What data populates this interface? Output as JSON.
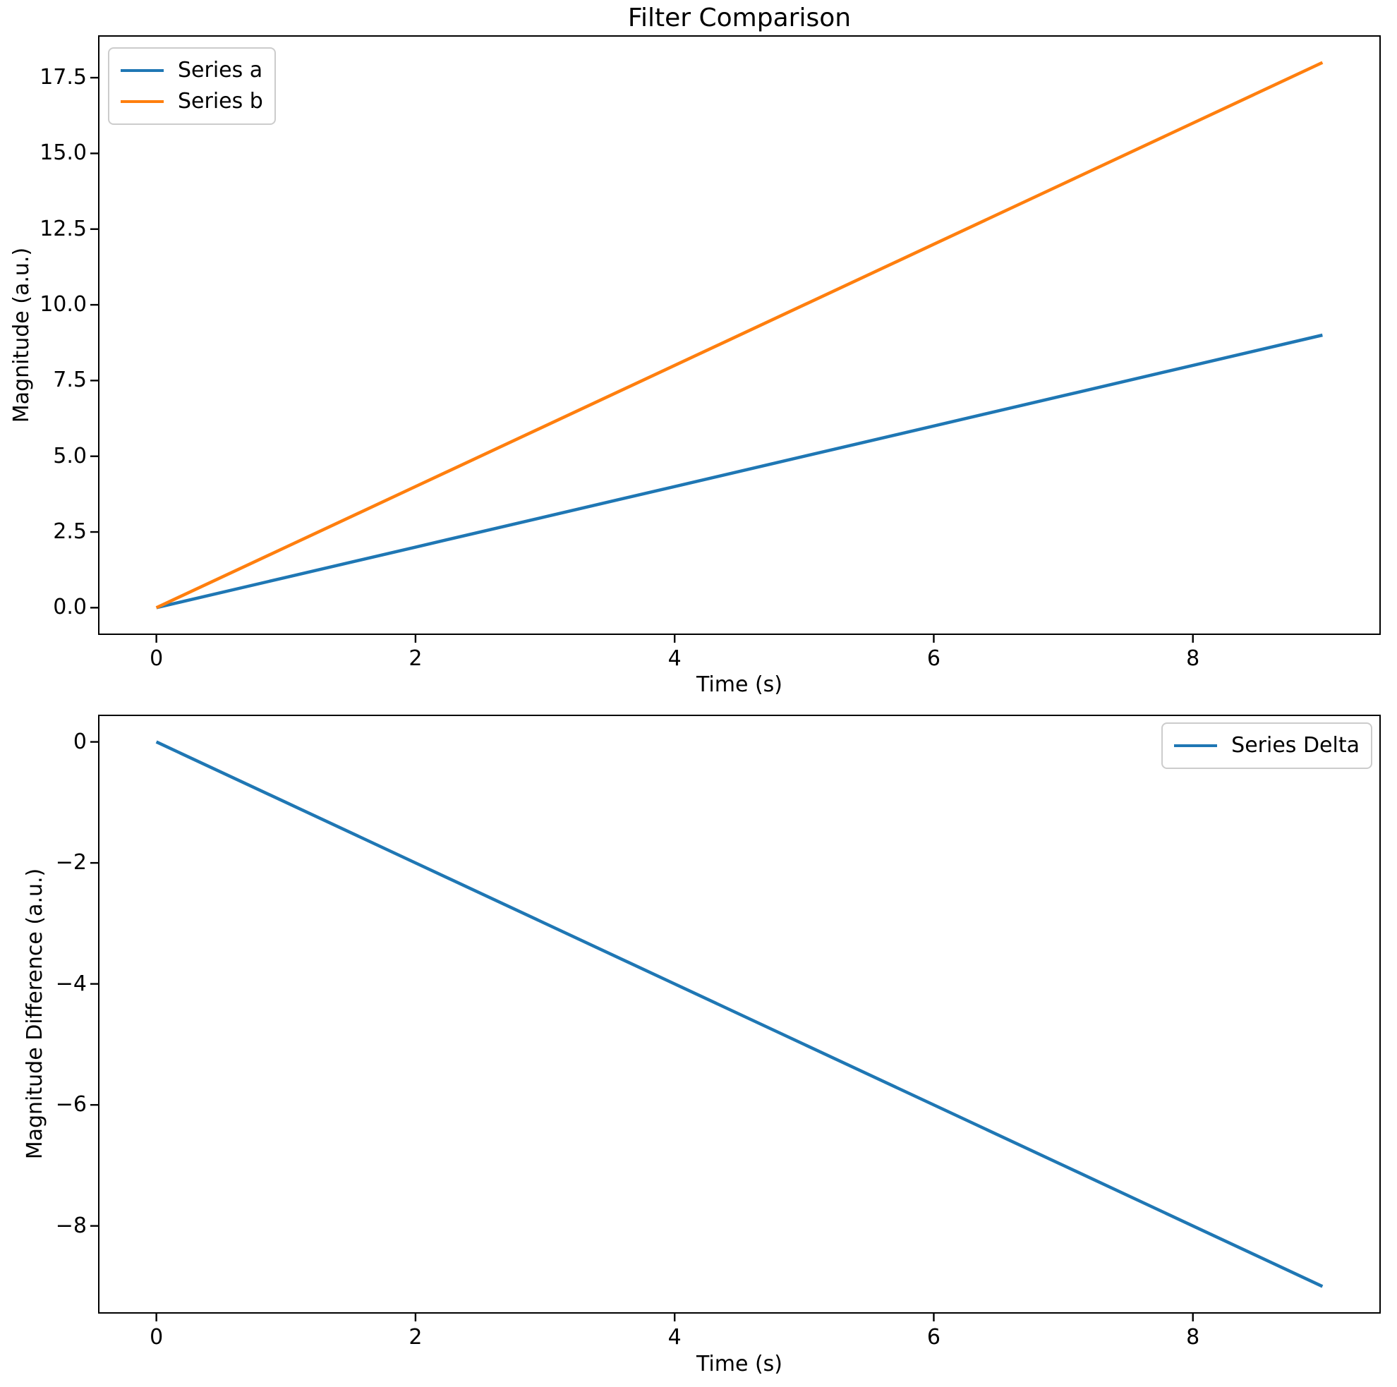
{
  "title": "Filter Comparison",
  "colors": {
    "series_a": "#1f77b4",
    "series_b": "#ff7f0e",
    "series_delta": "#1f77b4",
    "axis": "#000000",
    "legend_edge": "#cccccc",
    "background": "#ffffff"
  },
  "chart_data": [
    {
      "type": "line",
      "title": "Filter Comparison",
      "xlabel": "Time (s)",
      "ylabel": "Magnitude (a.u.)",
      "xlim": [
        -0.45,
        9.45
      ],
      "ylim": [
        -0.9,
        18.9
      ],
      "xticks": [
        0,
        2,
        4,
        6,
        8
      ],
      "xtick_labels": [
        "0",
        "2",
        "4",
        "6",
        "8"
      ],
      "yticks": [
        0,
        2.5,
        5,
        7.5,
        10,
        12.5,
        15,
        17.5
      ],
      "ytick_labels": [
        "0.0",
        "2.5",
        "5.0",
        "7.5",
        "10.0",
        "12.5",
        "15.0",
        "17.5"
      ],
      "x": [
        0,
        1,
        2,
        3,
        4,
        5,
        6,
        7,
        8,
        9
      ],
      "series": [
        {
          "name": "Series a",
          "color": "#1f77b4",
          "values": [
            0,
            1,
            2,
            3,
            4,
            5,
            6,
            7,
            8,
            9
          ]
        },
        {
          "name": "Series b",
          "color": "#ff7f0e",
          "values": [
            0,
            2,
            4,
            6,
            8,
            10,
            12,
            14,
            16,
            18
          ]
        }
      ],
      "legend_position": "upper-left",
      "grid": false
    },
    {
      "type": "line",
      "title": "",
      "xlabel": "Time (s)",
      "ylabel": "Magnitude Difference (a.u.)",
      "xlim": [
        -0.45,
        9.45
      ],
      "ylim": [
        -9.45,
        0.45
      ],
      "xticks": [
        0,
        2,
        4,
        6,
        8
      ],
      "xtick_labels": [
        "0",
        "2",
        "4",
        "6",
        "8"
      ],
      "yticks": [
        0,
        -2,
        -4,
        -6,
        -8
      ],
      "ytick_labels": [
        "0",
        "−2",
        "−4",
        "−6",
        "−8"
      ],
      "x": [
        0,
        1,
        2,
        3,
        4,
        5,
        6,
        7,
        8,
        9
      ],
      "series": [
        {
          "name": "Series Delta",
          "color": "#1f77b4",
          "values": [
            0,
            -1,
            -2,
            -3,
            -4,
            -5,
            -6,
            -7,
            -8,
            -9
          ]
        }
      ],
      "legend_position": "upper-right",
      "grid": false
    }
  ]
}
